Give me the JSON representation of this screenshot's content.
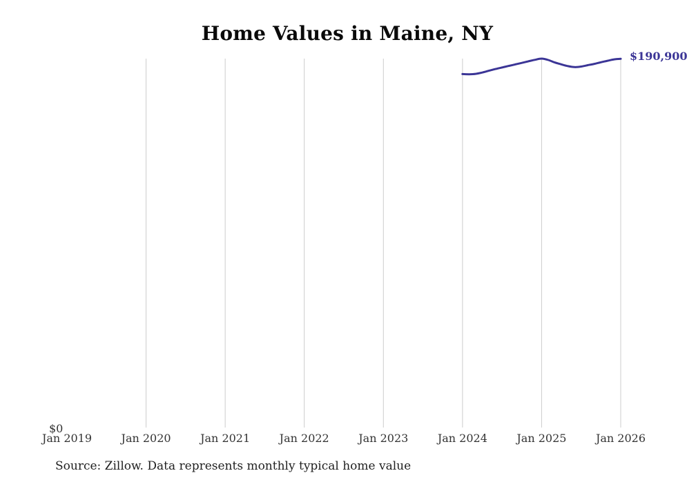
{
  "title": "Home Values in Maine, NY",
  "source_note": "Source: Zillow. Data represents monthly typical home value",
  "y_axis": {
    "zero_label": "$0"
  },
  "end_value_label": "$190,900",
  "colors": {
    "line": "#3b3596",
    "end_label_text": "#3b3596",
    "grid": "#cccccc",
    "axis_text": "#333333",
    "title_text": "#0a0a0a",
    "source_text": "#1f1f1f",
    "background": "#ffffff"
  },
  "chart_data": {
    "type": "line",
    "title": "Home Values in Maine, NY",
    "xlabel": "",
    "ylabel": "",
    "x_tick_labels": [
      "Jan 2019",
      "Jan 2020",
      "Jan 2021",
      "Jan 2022",
      "Jan 2023",
      "Jan 2024",
      "Jan 2025",
      "Jan 2026"
    ],
    "gridline_at_ticks": [
      "Jan 2020",
      "Jan 2021",
      "Jan 2022",
      "Jan 2023",
      "Jan 2024",
      "Jan 2025",
      "Jan 2026"
    ],
    "grid": "vertical-only",
    "legend": "none",
    "ylim": [
      0,
      191000
    ],
    "end_label": "$190,900",
    "series": [
      {
        "name": "Monthly typical home value",
        "x": [
          "2024-01",
          "2024-02",
          "2024-03",
          "2024-04",
          "2024-05",
          "2024-06",
          "2024-07",
          "2024-08",
          "2024-09",
          "2024-10",
          "2024-11",
          "2024-12",
          "2025-01",
          "2025-02",
          "2025-03",
          "2025-04",
          "2025-05",
          "2025-06",
          "2025-07",
          "2025-08",
          "2025-09",
          "2025-10",
          "2025-11",
          "2025-12",
          "2026-01"
        ],
        "values": [
          183000,
          182900,
          183100,
          183800,
          184700,
          185600,
          186400,
          187200,
          188000,
          188800,
          189600,
          190400,
          191000,
          190300,
          189000,
          188000,
          187100,
          186600,
          186900,
          187600,
          188300,
          189100,
          189900,
          190600,
          190900
        ]
      }
    ]
  }
}
